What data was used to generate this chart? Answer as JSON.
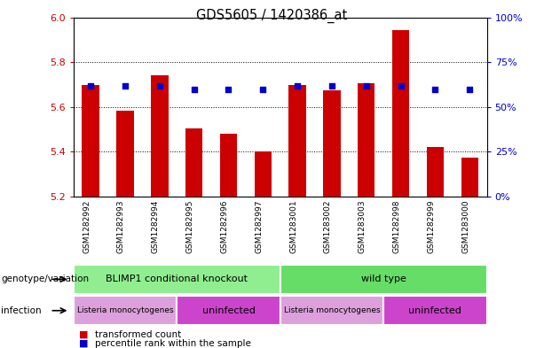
{
  "title": "GDS5605 / 1420386_at",
  "samples": [
    "GSM1282992",
    "GSM1282993",
    "GSM1282994",
    "GSM1282995",
    "GSM1282996",
    "GSM1282997",
    "GSM1283001",
    "GSM1283002",
    "GSM1283003",
    "GSM1282998",
    "GSM1282999",
    "GSM1283000"
  ],
  "bar_values": [
    5.7,
    5.585,
    5.74,
    5.505,
    5.48,
    5.4,
    5.7,
    5.675,
    5.705,
    5.945,
    5.42,
    5.375
  ],
  "blue_values": [
    62,
    62,
    62,
    60,
    60,
    60,
    62,
    62,
    62,
    62,
    60,
    60
  ],
  "ylim": [
    5.2,
    6.0
  ],
  "y_ticks": [
    5.2,
    5.4,
    5.6,
    5.8,
    6.0
  ],
  "right_ticks": [
    0,
    25,
    50,
    75,
    100
  ],
  "right_tick_labels": [
    "0%",
    "25%",
    "50%",
    "75%",
    "100%"
  ],
  "bar_color": "#cc0000",
  "blue_color": "#0000cc",
  "bar_width": 0.5,
  "genotype_groups": [
    {
      "label": "BLIMP1 conditional knockout",
      "start": 0,
      "end": 6,
      "color": "#90ee90"
    },
    {
      "label": "wild type",
      "start": 6,
      "end": 12,
      "color": "#66dd66"
    }
  ],
  "infection_groups": [
    {
      "label": "Listeria monocytogenes",
      "start": 0,
      "end": 3,
      "color": "#dda0dd"
    },
    {
      "label": "uninfected",
      "start": 3,
      "end": 6,
      "color": "#cc44cc"
    },
    {
      "label": "Listeria monocytogenes",
      "start": 6,
      "end": 9,
      "color": "#dda0dd"
    },
    {
      "label": "uninfected",
      "start": 9,
      "end": 12,
      "color": "#cc44cc"
    }
  ],
  "legend_items": [
    {
      "color": "#cc0000",
      "label": "transformed count"
    },
    {
      "color": "#0000cc",
      "label": "percentile rank within the sample"
    }
  ],
  "left_label_color": "#cc0000",
  "right_label_color": "#0000cc",
  "tick_bg_color": "#cccccc",
  "plot_bg_color": "#ffffff"
}
